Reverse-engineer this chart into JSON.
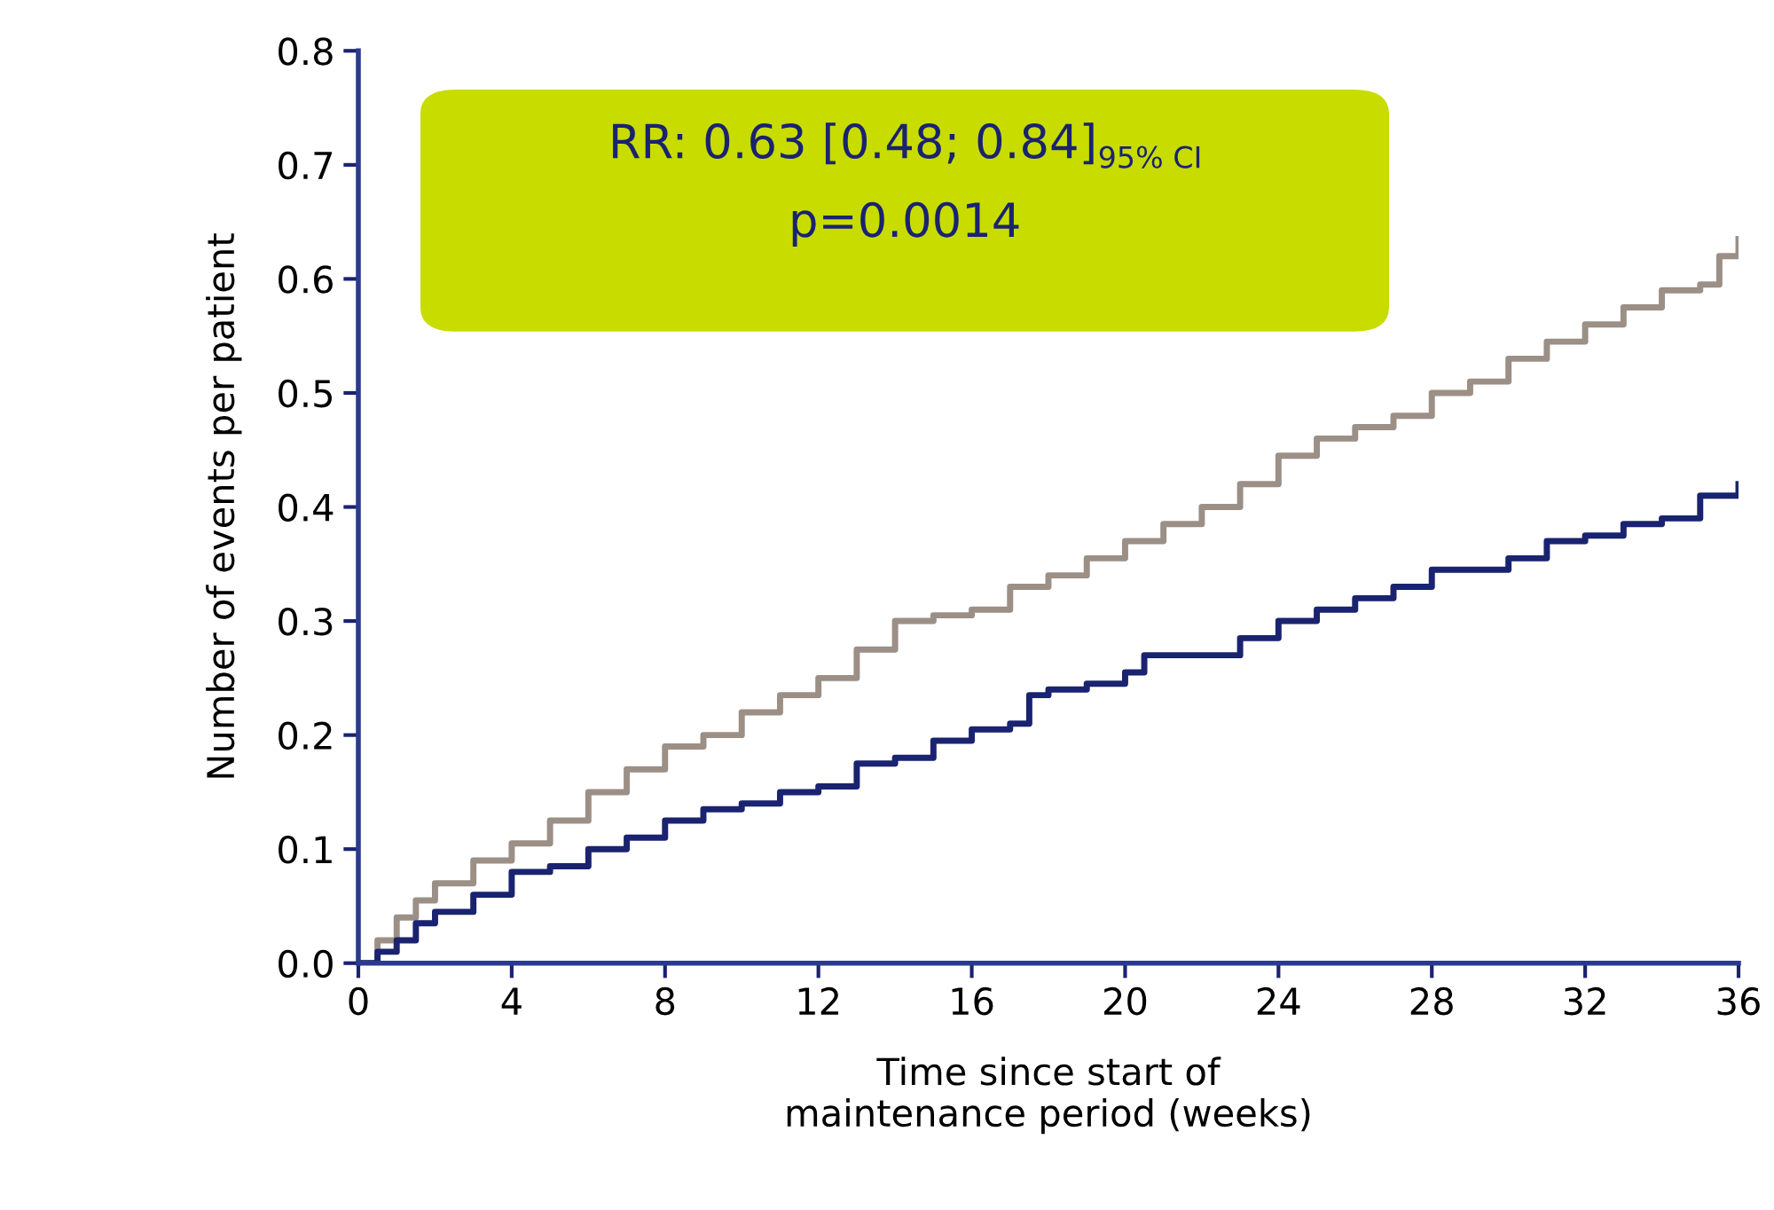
{
  "chart_data": {
    "type": "step",
    "xlabel": "Time since start of\nmaintenance period (weeks)",
    "ylabel": "Number of events per patient",
    "annotations": [
      "RR: 0.63 [0.48; 0.84]$_{95% CI}$",
      "p=0.0014"
    ],
    "series": [
      {
        "color": "#9b8f86",
        "x": [
          0,
          0.5,
          1,
          1.5,
          2,
          3,
          4,
          5,
          6,
          7,
          8,
          9,
          10,
          11,
          12,
          13,
          14,
          15,
          16,
          17,
          18,
          19,
          20,
          21,
          22,
          23,
          24,
          25,
          26,
          27,
          28,
          29,
          30,
          31,
          32,
          33,
          34,
          35,
          35.5,
          36
        ],
        "values": [
          0,
          0.02,
          0.04,
          0.055,
          0.07,
          0.09,
          0.105,
          0.125,
          0.15,
          0.17,
          0.19,
          0.2,
          0.22,
          0.235,
          0.25,
          0.275,
          0.3,
          0.305,
          0.31,
          0.33,
          0.34,
          0.355,
          0.37,
          0.385,
          0.4,
          0.42,
          0.445,
          0.46,
          0.47,
          0.48,
          0.5,
          0.51,
          0.53,
          0.545,
          0.56,
          0.575,
          0.59,
          0.595,
          0.62,
          0.635
        ]
      },
      {
        "color": "#1a2370",
        "x": [
          0,
          0.5,
          1,
          1.5,
          2,
          3,
          4,
          5,
          6,
          7,
          8,
          9,
          10,
          11,
          12,
          13,
          14,
          15,
          16,
          17,
          17.5,
          18,
          19,
          20,
          20.5,
          22,
          23,
          24,
          25,
          26,
          27,
          28,
          29,
          30,
          31,
          32,
          33,
          34,
          35,
          36
        ],
        "values": [
          0,
          0.01,
          0.02,
          0.035,
          0.045,
          0.06,
          0.08,
          0.085,
          0.1,
          0.11,
          0.125,
          0.135,
          0.14,
          0.15,
          0.155,
          0.175,
          0.18,
          0.195,
          0.205,
          0.21,
          0.235,
          0.24,
          0.245,
          0.255,
          0.27,
          0.27,
          0.285,
          0.3,
          0.31,
          0.32,
          0.33,
          0.345,
          0.345,
          0.355,
          0.37,
          0.375,
          0.385,
          0.39,
          0.41,
          0.42
        ]
      }
    ],
    "xlim": [
      0,
      36
    ],
    "xticks": [
      0,
      4,
      8,
      12,
      16,
      20,
      24,
      28,
      32,
      36
    ],
    "ylim": [
      0,
      0.8
    ],
    "yticks": [
      {
        "value": 0,
        "label": "0.0"
      },
      0.1,
      0.2,
      0.3,
      0.4,
      0.5,
      0.6,
      0.7,
      0.8
    ],
    "grid": false,
    "legend": false
  }
}
